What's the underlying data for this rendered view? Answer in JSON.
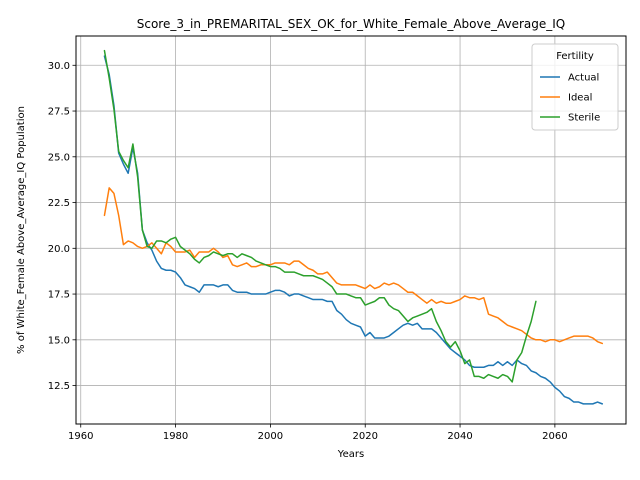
{
  "chart_data": {
    "type": "line",
    "title": "Score_3_in_PREMARITAL_SEX_OK_for_White_Female_Above_Average_IQ",
    "xlabel": "Years",
    "ylabel": "% of White_Female Above_Average_IQ Population",
    "xlim": [
      1959,
      2075
    ],
    "ylim": [
      10.4,
      31.6
    ],
    "xticks": [
      1960,
      1980,
      2000,
      2020,
      2040,
      2060
    ],
    "yticks": [
      12.5,
      15.0,
      17.5,
      20.0,
      22.5,
      25.0,
      27.5,
      30.0
    ],
    "xtick_labels": [
      "1960",
      "1980",
      "2000",
      "2020",
      "2040",
      "2060"
    ],
    "ytick_labels": [
      "12.5",
      "15.0",
      "17.5",
      "20.0",
      "22.5",
      "25.0",
      "27.5",
      "30.0"
    ],
    "grid": true,
    "legend": {
      "title": "Fertility",
      "position": "top-right"
    },
    "series": [
      {
        "name": "Actual",
        "color": "#1f77b4",
        "x": [
          1965,
          1966,
          1967,
          1968,
          1969,
          1970,
          1971,
          1972,
          1973,
          1974,
          1975,
          1976,
          1977,
          1978,
          1979,
          1980,
          1981,
          1982,
          1983,
          1984,
          1985,
          1986,
          1987,
          1988,
          1989,
          1990,
          1991,
          1992,
          1993,
          1994,
          1995,
          1996,
          1997,
          1998,
          1999,
          2000,
          2001,
          2002,
          2003,
          2004,
          2005,
          2006,
          2007,
          2008,
          2009,
          2010,
          2011,
          2012,
          2013,
          2014,
          2015,
          2016,
          2017,
          2018,
          2019,
          2020,
          2021,
          2022,
          2023,
          2024,
          2025,
          2026,
          2027,
          2028,
          2029,
          2030,
          2031,
          2032,
          2033,
          2034,
          2035,
          2036,
          2037,
          2038,
          2039,
          2040,
          2041,
          2042,
          2043,
          2044,
          2045,
          2046,
          2047,
          2048,
          2049,
          2050,
          2051,
          2052,
          2053,
          2054,
          2055,
          2056,
          2057,
          2058,
          2059,
          2060,
          2061,
          2062,
          2063,
          2064,
          2065,
          2066,
          2067,
          2068,
          2069,
          2070
        ],
        "values": [
          30.5,
          29.5,
          27.8,
          25.2,
          24.6,
          24.1,
          25.5,
          24.1,
          21.0,
          20.3,
          19.9,
          19.3,
          18.9,
          18.8,
          18.8,
          18.7,
          18.4,
          18.0,
          17.9,
          17.8,
          17.6,
          18.0,
          18.0,
          18.0,
          17.9,
          18.0,
          18.0,
          17.7,
          17.6,
          17.6,
          17.6,
          17.5,
          17.5,
          17.5,
          17.5,
          17.6,
          17.7,
          17.7,
          17.6,
          17.4,
          17.5,
          17.5,
          17.4,
          17.3,
          17.2,
          17.2,
          17.2,
          17.1,
          17.1,
          16.6,
          16.4,
          16.1,
          15.9,
          15.8,
          15.7,
          15.2,
          15.4,
          15.1,
          15.1,
          15.1,
          15.2,
          15.4,
          15.6,
          15.8,
          15.9,
          15.8,
          15.9,
          15.6,
          15.6,
          15.6,
          15.4,
          15.1,
          14.8,
          14.5,
          14.3,
          14.1,
          13.9,
          13.6,
          13.5,
          13.5,
          13.5,
          13.6,
          13.6,
          13.8,
          13.6,
          13.8,
          13.6,
          13.9,
          13.7,
          13.6,
          13.3,
          13.2,
          13.0,
          12.9,
          12.7,
          12.4,
          12.2,
          11.9,
          11.8,
          11.6,
          11.6,
          11.5,
          11.5,
          11.5,
          11.6,
          11.5
        ]
      },
      {
        "name": "Ideal",
        "color": "#ff7f0e",
        "x": [
          1965,
          1966,
          1967,
          1968,
          1969,
          1970,
          1971,
          1972,
          1973,
          1974,
          1975,
          1976,
          1977,
          1978,
          1979,
          1980,
          1981,
          1982,
          1983,
          1984,
          1985,
          1986,
          1987,
          1988,
          1989,
          1990,
          1991,
          1992,
          1993,
          1994,
          1995,
          1996,
          1997,
          1998,
          1999,
          2000,
          2001,
          2002,
          2003,
          2004,
          2005,
          2006,
          2007,
          2008,
          2009,
          2010,
          2011,
          2012,
          2013,
          2014,
          2015,
          2016,
          2017,
          2018,
          2019,
          2020,
          2021,
          2022,
          2023,
          2024,
          2025,
          2026,
          2027,
          2028,
          2029,
          2030,
          2031,
          2032,
          2033,
          2034,
          2035,
          2036,
          2037,
          2038,
          2039,
          2040,
          2041,
          2042,
          2043,
          2044,
          2045,
          2046,
          2047,
          2048,
          2049,
          2050,
          2051,
          2052,
          2053,
          2054,
          2055,
          2056,
          2057,
          2058,
          2059,
          2060,
          2061,
          2062,
          2063,
          2064,
          2065,
          2066,
          2067,
          2068,
          2069,
          2070
        ],
        "values": [
          21.8,
          23.3,
          23.0,
          21.8,
          20.2,
          20.4,
          20.3,
          20.1,
          20.0,
          20.1,
          20.3,
          20.0,
          19.7,
          20.3,
          20.1,
          19.8,
          19.8,
          19.8,
          19.9,
          19.5,
          19.8,
          19.8,
          19.8,
          20.0,
          19.8,
          19.5,
          19.6,
          19.1,
          19.0,
          19.1,
          19.2,
          19.0,
          19.0,
          19.1,
          19.1,
          19.1,
          19.2,
          19.2,
          19.2,
          19.1,
          19.3,
          19.3,
          19.1,
          18.9,
          18.8,
          18.6,
          18.6,
          18.7,
          18.4,
          18.1,
          18.0,
          18.0,
          18.0,
          18.0,
          17.9,
          17.8,
          18.0,
          17.8,
          17.9,
          18.1,
          18.0,
          18.1,
          18.0,
          17.8,
          17.6,
          17.6,
          17.4,
          17.2,
          17.0,
          17.2,
          17.0,
          17.1,
          17.0,
          17.0,
          17.1,
          17.2,
          17.4,
          17.3,
          17.3,
          17.2,
          17.3,
          16.4,
          16.3,
          16.2,
          16.0,
          15.8,
          15.7,
          15.6,
          15.5,
          15.3,
          15.1,
          15.0,
          15.0,
          14.9,
          15.0,
          15.0,
          14.9,
          15.0,
          15.1,
          15.2,
          15.2,
          15.2,
          15.2,
          15.1,
          14.9,
          14.8
        ]
      },
      {
        "name": "Sterile",
        "color": "#2ca02c",
        "x": [
          1965,
          1966,
          1967,
          1968,
          1969,
          1970,
          1971,
          1972,
          1973,
          1974,
          1975,
          1976,
          1977,
          1978,
          1979,
          1980,
          1981,
          1982,
          1983,
          1984,
          1985,
          1986,
          1987,
          1988,
          1989,
          1990,
          1991,
          1992,
          1993,
          1994,
          1995,
          1996,
          1997,
          1998,
          1999,
          2000,
          2001,
          2002,
          2003,
          2004,
          2005,
          2006,
          2007,
          2008,
          2009,
          2010,
          2011,
          2012,
          2013,
          2014,
          2015,
          2016,
          2017,
          2018,
          2019,
          2020,
          2021,
          2022,
          2023,
          2024,
          2025,
          2026,
          2027,
          2028,
          2029,
          2030,
          2031,
          2032,
          2033,
          2034,
          2035,
          2036,
          2037,
          2038,
          2039,
          2040,
          2041,
          2042,
          2043,
          2044,
          2045,
          2046,
          2047,
          2048,
          2049,
          2050,
          2051,
          2052,
          2053,
          2054,
          2055,
          2056
        ],
        "values": [
          30.8,
          29.3,
          27.6,
          25.3,
          24.8,
          24.4,
          25.7,
          23.9,
          21.0,
          20.1,
          20.0,
          20.4,
          20.4,
          20.3,
          20.5,
          20.6,
          20.1,
          19.9,
          19.7,
          19.4,
          19.2,
          19.5,
          19.6,
          19.8,
          19.7,
          19.6,
          19.7,
          19.7,
          19.5,
          19.7,
          19.6,
          19.5,
          19.3,
          19.2,
          19.1,
          19.0,
          19.0,
          18.9,
          18.7,
          18.7,
          18.7,
          18.6,
          18.5,
          18.5,
          18.5,
          18.4,
          18.3,
          18.1,
          17.9,
          17.5,
          17.5,
          17.5,
          17.4,
          17.3,
          17.3,
          16.9,
          17.0,
          17.1,
          17.3,
          17.3,
          16.9,
          16.7,
          16.6,
          16.3,
          16.0,
          16.2,
          16.3,
          16.4,
          16.5,
          16.7,
          16.0,
          15.5,
          14.9,
          14.6,
          14.9,
          14.4,
          13.7,
          13.9,
          13.0,
          13.0,
          12.9,
          13.1,
          13.0,
          12.9,
          13.1,
          13.0,
          12.7,
          13.9,
          14.3,
          15.2,
          16.0,
          17.1
        ]
      }
    ]
  }
}
